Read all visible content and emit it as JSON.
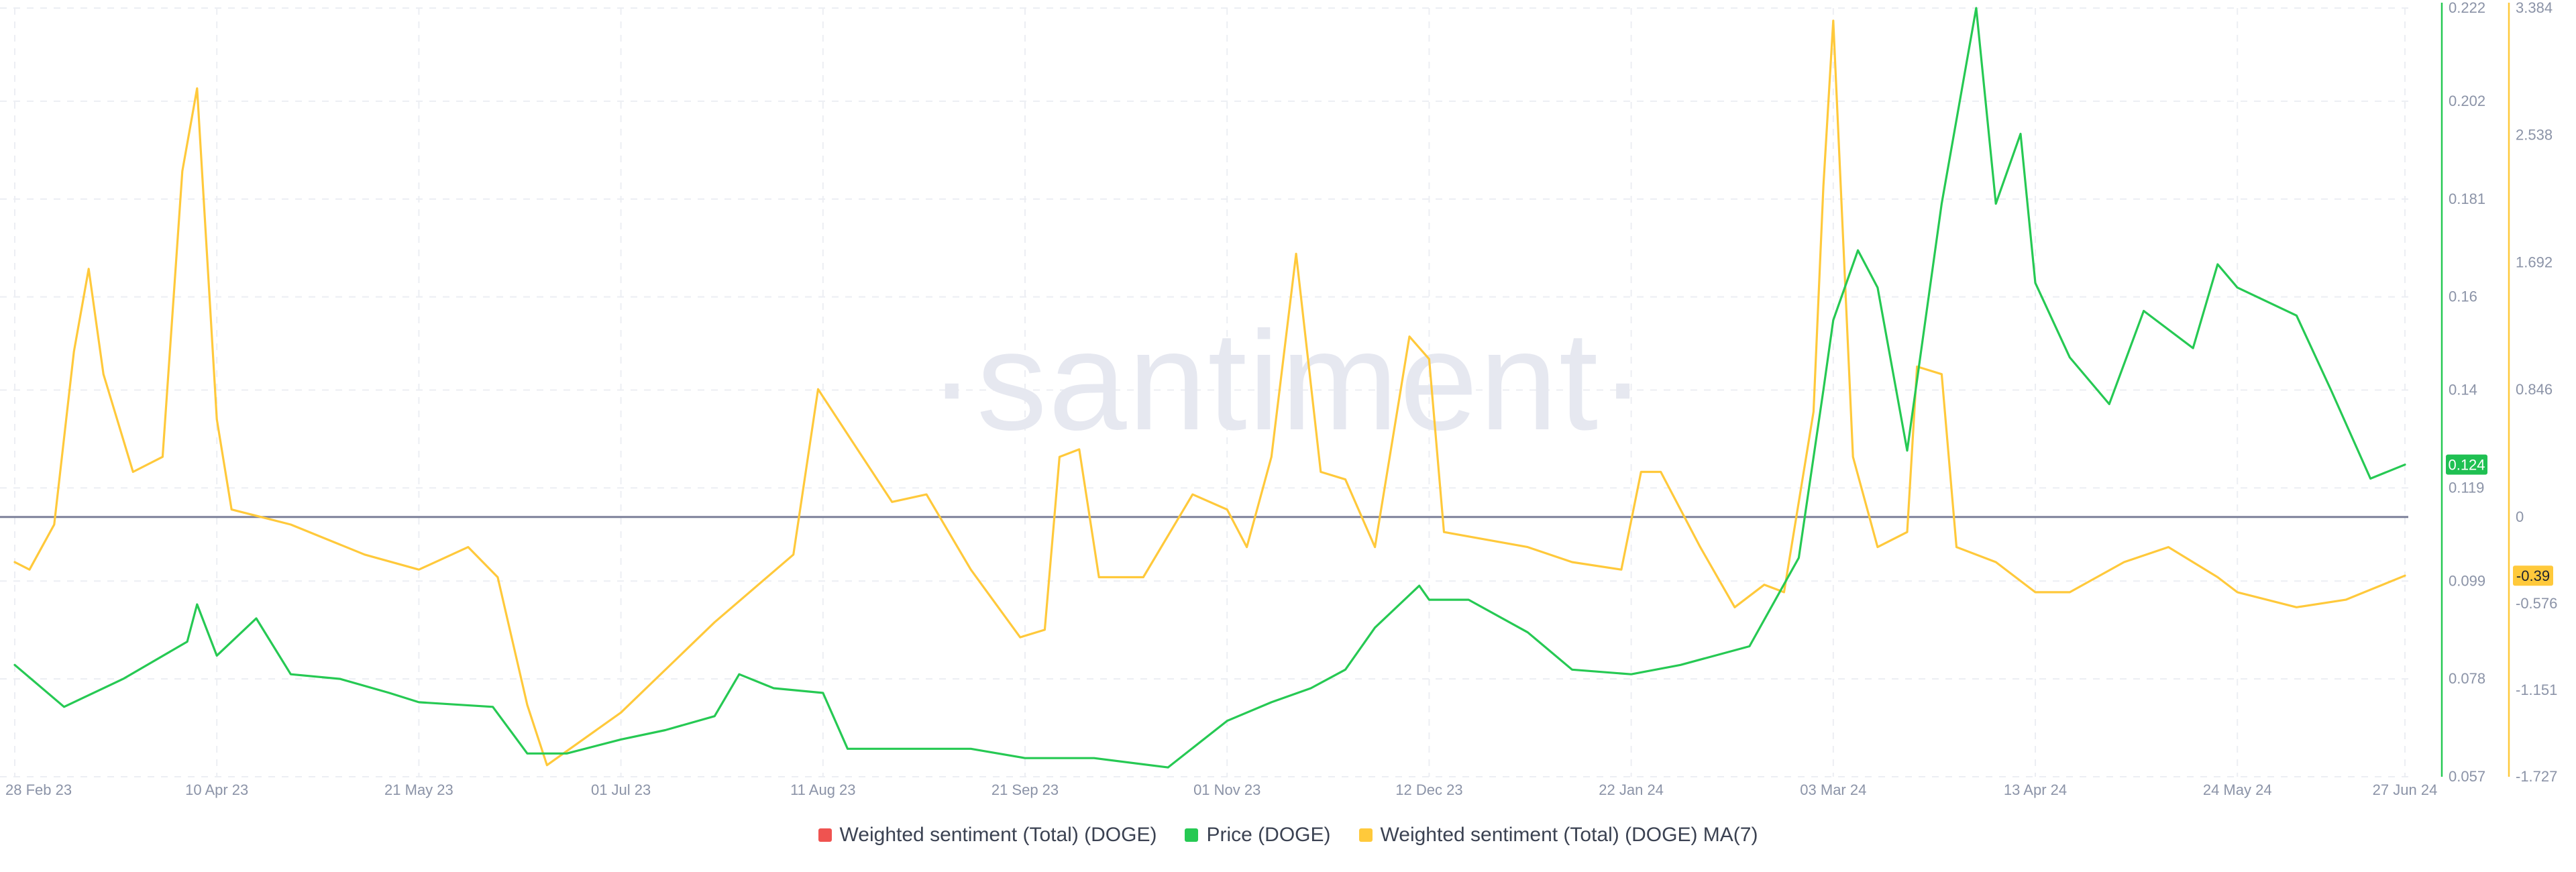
{
  "watermark": "·santiment·",
  "chart_data": {
    "type": "line",
    "x_ticks": [
      "28 Feb 23",
      "10 Apr 23",
      "21 May 23",
      "01 Jul 23",
      "11 Aug 23",
      "21 Sep 23",
      "01 Nov 23",
      "12 Dec 23",
      "22 Jan 24",
      "03 Mar 24",
      "13 Apr 24",
      "24 May 24",
      "27 Jun 24"
    ],
    "y_price_axis": {
      "ticks": [
        "0.222",
        "0.202",
        "0.181",
        "0.16",
        "0.14",
        "0.119",
        "0.099",
        "0.078",
        "0.057"
      ],
      "ylim": [
        0.057,
        0.222
      ]
    },
    "y_sentiment_axis": {
      "ticks": [
        "3.384",
        "2.538",
        "1.692",
        "0.846",
        "0",
        "-0.576",
        "-1.151",
        "-1.727"
      ],
      "ylim": [
        -1.727,
        3.384
      ]
    },
    "grid": true,
    "legend_position": "bottom",
    "series": [
      {
        "name": "Weighted sentiment (Total) (DOGE)",
        "color": "#ef5350",
        "axis": "sentiment",
        "values": []
      },
      {
        "name": "Price (DOGE)",
        "color": "#26c953",
        "axis": "price",
        "last_value_badge": "0.124",
        "points": [
          [
            "28 Feb 23",
            0.081
          ],
          [
            "10 Mar 23",
            0.072
          ],
          [
            "22 Mar 23",
            0.078
          ],
          [
            "04 Apr 23",
            0.086
          ],
          [
            "06 Apr 23",
            0.094
          ],
          [
            "10 Apr 23",
            0.083
          ],
          [
            "18 Apr 23",
            0.091
          ],
          [
            "25 Apr 23",
            0.079
          ],
          [
            "05 May 23",
            0.078
          ],
          [
            "15 May 23",
            0.075
          ],
          [
            "21 May 23",
            0.073
          ],
          [
            "05 Jun 23",
            0.072
          ],
          [
            "12 Jun 23",
            0.062
          ],
          [
            "20 Jun 23",
            0.062
          ],
          [
            "01 Jul 23",
            0.065
          ],
          [
            "10 Jul 23",
            0.067
          ],
          [
            "20 Jul 23",
            0.07
          ],
          [
            "25 Jul 23",
            0.079
          ],
          [
            "01 Aug 23",
            0.076
          ],
          [
            "11 Aug 23",
            0.075
          ],
          [
            "16 Aug 23",
            0.063
          ],
          [
            "01 Sep 23",
            0.063
          ],
          [
            "10 Sep 23",
            0.063
          ],
          [
            "21 Sep 23",
            0.061
          ],
          [
            "05 Oct 23",
            0.061
          ],
          [
            "20 Oct 23",
            0.059
          ],
          [
            "01 Nov 23",
            0.069
          ],
          [
            "10 Nov 23",
            0.073
          ],
          [
            "18 Nov 23",
            0.076
          ],
          [
            "25 Nov 23",
            0.08
          ],
          [
            "01 Dec 23",
            0.089
          ],
          [
            "10 Dec 23",
            0.098
          ],
          [
            "12 Dec 23",
            0.095
          ],
          [
            "20 Dec 23",
            0.095
          ],
          [
            "01 Jan 24",
            0.088
          ],
          [
            "10 Jan 24",
            0.08
          ],
          [
            "22 Jan 24",
            0.079
          ],
          [
            "01 Feb 24",
            0.081
          ],
          [
            "15 Feb 24",
            0.085
          ],
          [
            "25 Feb 24",
            0.104
          ],
          [
            "01 Mar 24",
            0.14
          ],
          [
            "03 Mar 24",
            0.155
          ],
          [
            "08 Mar 24",
            0.17
          ],
          [
            "12 Mar 24",
            0.162
          ],
          [
            "18 Mar 24",
            0.127
          ],
          [
            "25 Mar 24",
            0.18
          ],
          [
            "01 Apr 24",
            0.222
          ],
          [
            "05 Apr 24",
            0.18
          ],
          [
            "10 Apr 24",
            0.195
          ],
          [
            "13 Apr 24",
            0.163
          ],
          [
            "20 Apr 24",
            0.147
          ],
          [
            "28 Apr 24",
            0.137
          ],
          [
            "05 May 24",
            0.157
          ],
          [
            "15 May 24",
            0.149
          ],
          [
            "20 May 24",
            0.167
          ],
          [
            "24 May 24",
            0.162
          ],
          [
            "05 Jun 24",
            0.156
          ],
          [
            "12 Jun 24",
            0.14
          ],
          [
            "20 Jun 24",
            0.121
          ],
          [
            "27 Jun 24",
            0.124
          ]
        ]
      },
      {
        "name": "Weighted sentiment (Total) (DOGE) MA(7)",
        "color": "#ffc93b",
        "axis": "sentiment",
        "last_value_badge": "-0.39",
        "points": [
          [
            "28 Feb 23",
            -0.3
          ],
          [
            "03 Mar 23",
            -0.35
          ],
          [
            "08 Mar 23",
            -0.05
          ],
          [
            "12 Mar 23",
            1.1
          ],
          [
            "15 Mar 23",
            1.65
          ],
          [
            "18 Mar 23",
            0.95
          ],
          [
            "24 Mar 23",
            0.3
          ],
          [
            "30 Mar 23",
            0.4
          ],
          [
            "03 Apr 23",
            2.3
          ],
          [
            "06 Apr 23",
            2.85
          ],
          [
            "10 Apr 23",
            0.65
          ],
          [
            "13 Apr 23",
            0.05
          ],
          [
            "25 Apr 23",
            -0.05
          ],
          [
            "10 May 23",
            -0.25
          ],
          [
            "21 May 23",
            -0.35
          ],
          [
            "31 May 23",
            -0.2
          ],
          [
            "06 Jun 23",
            -0.4
          ],
          [
            "12 Jun 23",
            -1.25
          ],
          [
            "16 Jun 23",
            -1.65
          ],
          [
            "01 Jul 23",
            -1.3
          ],
          [
            "20 Jul 23",
            -0.7
          ],
          [
            "05 Aug 23",
            -0.25
          ],
          [
            "10 Aug 23",
            0.85
          ],
          [
            "18 Aug 23",
            0.45
          ],
          [
            "25 Aug 23",
            0.1
          ],
          [
            "01 Sep 23",
            0.15
          ],
          [
            "10 Sep 23",
            -0.35
          ],
          [
            "20 Sep 23",
            -0.8
          ],
          [
            "25 Sep 23",
            -0.75
          ],
          [
            "28 Sep 23",
            0.4
          ],
          [
            "02 Oct 23",
            0.45
          ],
          [
            "06 Oct 23",
            -0.4
          ],
          [
            "15 Oct 23",
            -0.4
          ],
          [
            "25 Oct 23",
            0.15
          ],
          [
            "01 Nov 23",
            0.05
          ],
          [
            "05 Nov 23",
            -0.2
          ],
          [
            "10 Nov 23",
            0.4
          ],
          [
            "15 Nov 23",
            1.75
          ],
          [
            "20 Nov 23",
            0.3
          ],
          [
            "25 Nov 23",
            0.25
          ],
          [
            "01 Dec 23",
            -0.2
          ],
          [
            "08 Dec 23",
            1.2
          ],
          [
            "12 Dec 23",
            1.05
          ],
          [
            "15 Dec 23",
            -0.1
          ],
          [
            "01 Jan 24",
            -0.2
          ],
          [
            "10 Jan 24",
            -0.3
          ],
          [
            "20 Jan 24",
            -0.35
          ],
          [
            "24 Jan 24",
            0.3
          ],
          [
            "28 Jan 24",
            0.3
          ],
          [
            "05 Feb 24",
            -0.2
          ],
          [
            "12 Feb 24",
            -0.6
          ],
          [
            "18 Feb 24",
            -0.45
          ],
          [
            "22 Feb 24",
            -0.5
          ],
          [
            "28 Feb 24",
            0.7
          ],
          [
            "01 Mar 24",
            2.2
          ],
          [
            "03 Mar 24",
            3.3
          ],
          [
            "07 Mar 24",
            0.4
          ],
          [
            "12 Mar 24",
            -0.2
          ],
          [
            "18 Mar 24",
            -0.1
          ],
          [
            "20 Mar 24",
            1.0
          ],
          [
            "25 Mar 24",
            0.95
          ],
          [
            "28 Mar 24",
            -0.2
          ],
          [
            "05 Apr 24",
            -0.3
          ],
          [
            "13 Apr 24",
            -0.5
          ],
          [
            "20 Apr 24",
            -0.5
          ],
          [
            "01 May 24",
            -0.3
          ],
          [
            "10 May 24",
            -0.2
          ],
          [
            "20 May 24",
            -0.4
          ],
          [
            "24 May 24",
            -0.5
          ],
          [
            "05 Jun 24",
            -0.6
          ],
          [
            "15 Jun 24",
            -0.55
          ],
          [
            "27 Jun 24",
            -0.39
          ]
        ]
      }
    ]
  }
}
